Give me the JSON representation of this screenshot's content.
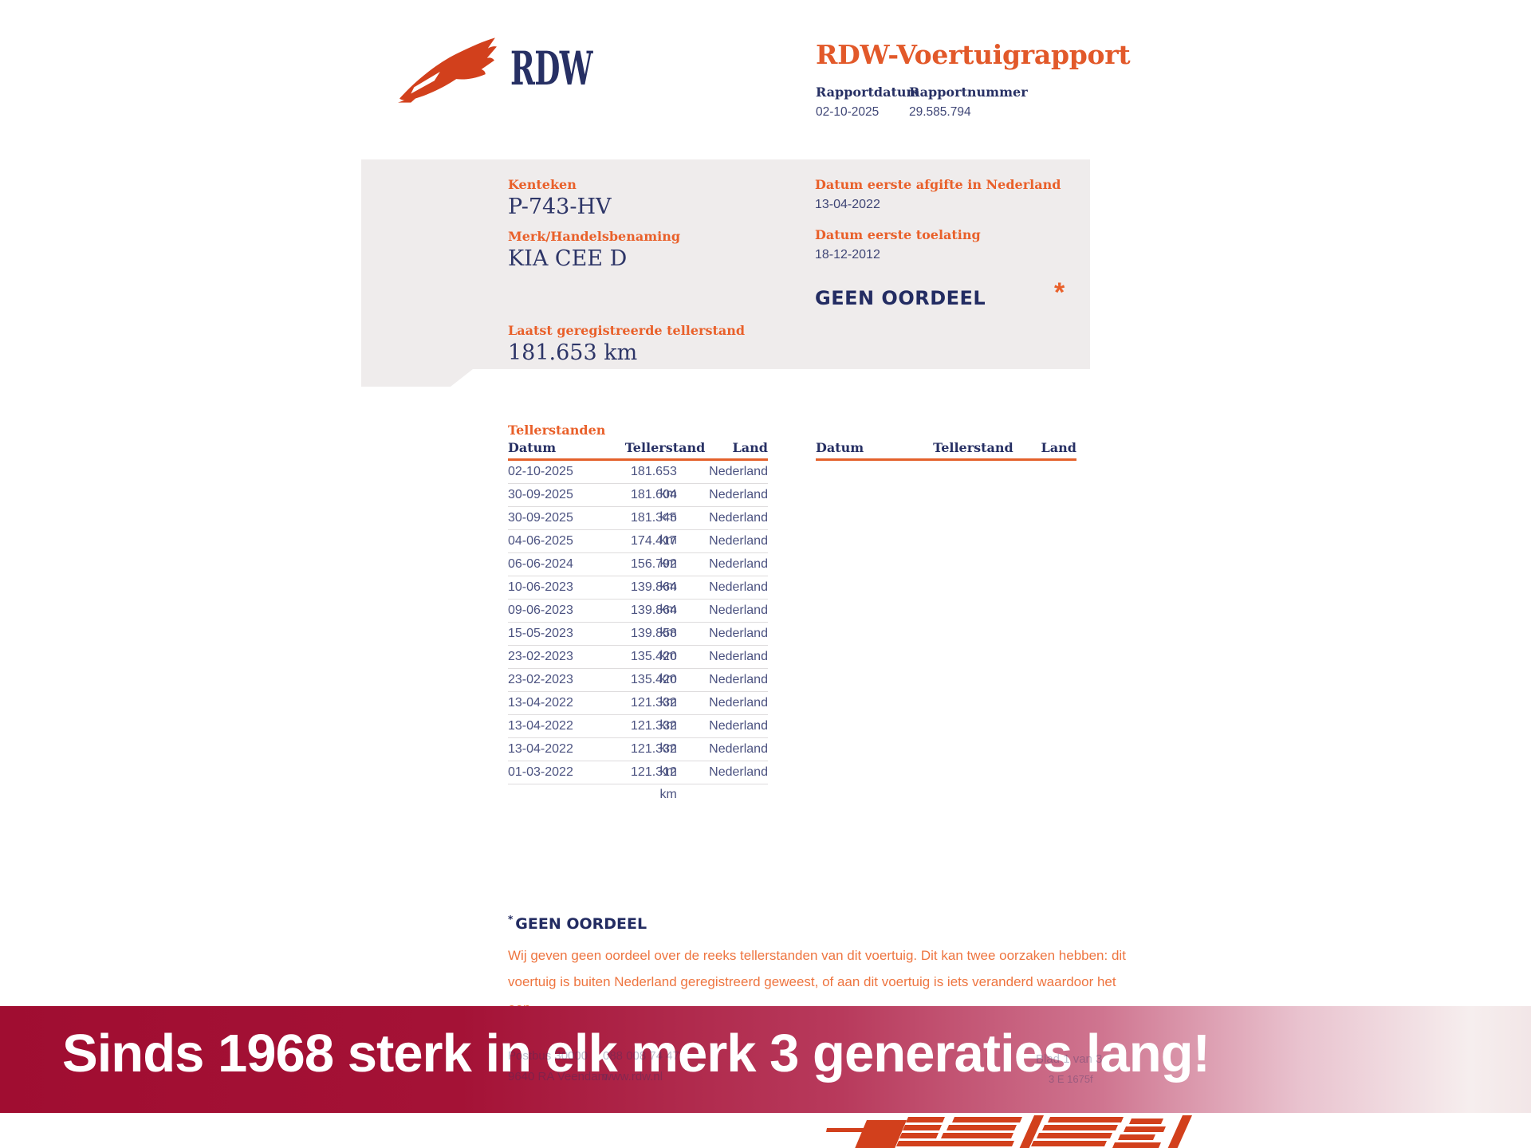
{
  "header": {
    "brand": "RDW",
    "report_title": "RDW-Voertuigrapport",
    "report_date_label": "Rapportdatum",
    "report_date": "02-10-2025",
    "report_number_label": "Rapportnummer",
    "report_number": "29.585.794"
  },
  "summary_card": {
    "kenteken_label": "Kenteken",
    "kenteken": "P-743-HV",
    "merk_label": "Merk/Handelsbenaming",
    "merk": "KIA CEE D",
    "tellerstand_label": "Laatst geregistreerde tellerstand",
    "tellerstand": "181.653 km",
    "afgifte_label": "Datum eerste afgifte in Nederland",
    "afgifte": "13-04-2022",
    "toelating_label": "Datum eerste toelating",
    "toelating": "18-12-2012",
    "oordeel": "GEEN OORDEEL",
    "oordeel_mark": "*"
  },
  "tellerstanden": {
    "section_title": "Tellerstanden",
    "columns": [
      "Datum",
      "Tellerstand",
      "Land"
    ],
    "rows": [
      [
        "02-10-2025",
        "181.653 km",
        "Nederland"
      ],
      [
        "30-09-2025",
        "181.604 km",
        "Nederland"
      ],
      [
        "30-09-2025",
        "181.345 km",
        "Nederland"
      ],
      [
        "04-06-2025",
        "174.417 km",
        "Nederland"
      ],
      [
        "06-06-2024",
        "156.792 km",
        "Nederland"
      ],
      [
        "10-06-2023",
        "139.864 km",
        "Nederland"
      ],
      [
        "09-06-2023",
        "139.864 km",
        "Nederland"
      ],
      [
        "15-05-2023",
        "139.858 km",
        "Nederland"
      ],
      [
        "23-02-2023",
        "135.420 km",
        "Nederland"
      ],
      [
        "23-02-2023",
        "135.420 km",
        "Nederland"
      ],
      [
        "13-04-2022",
        "121.332 km",
        "Nederland"
      ],
      [
        "13-04-2022",
        "121.332 km",
        "Nederland"
      ],
      [
        "13-04-2022",
        "121.332 km",
        "Nederland"
      ],
      [
        "01-03-2022",
        "121.312 km",
        "Nederland"
      ]
    ]
  },
  "footnote": {
    "mark": "*",
    "title": "GEEN OORDEEL",
    "lines": [
      "Wij geven geen oordeel over de reeks tellerstanden van dit voertuig. Dit kan twee oorzaken hebben: dit",
      "voertuig is buiten Nederland geregistreerd geweest, of aan dit voertuig is iets veranderd waardoor het een",
      "ander kenteken heeft gekregen."
    ]
  },
  "page_footer": {
    "address_line1": "Postbus 30000",
    "address_line2": "9640 RA Veendam",
    "phone": "088 008 74 47",
    "website": "www.rdw.nl",
    "page_indicator": "Blad 1 van 3",
    "form_code": "3 E 1675f"
  },
  "banner": {
    "text": "Sinds 1968 sterk in elk merk 3 generaties lang!"
  },
  "colors": {
    "accent_orange": "#e4612b",
    "navy": "#273064",
    "value_navy": "#4b5280",
    "card_bg": "#efecec",
    "banner_start": "#a00d31",
    "banner_end": "#f2e6e7",
    "banner_text": "#ffffff",
    "logo_orange": "#d2401c"
  }
}
